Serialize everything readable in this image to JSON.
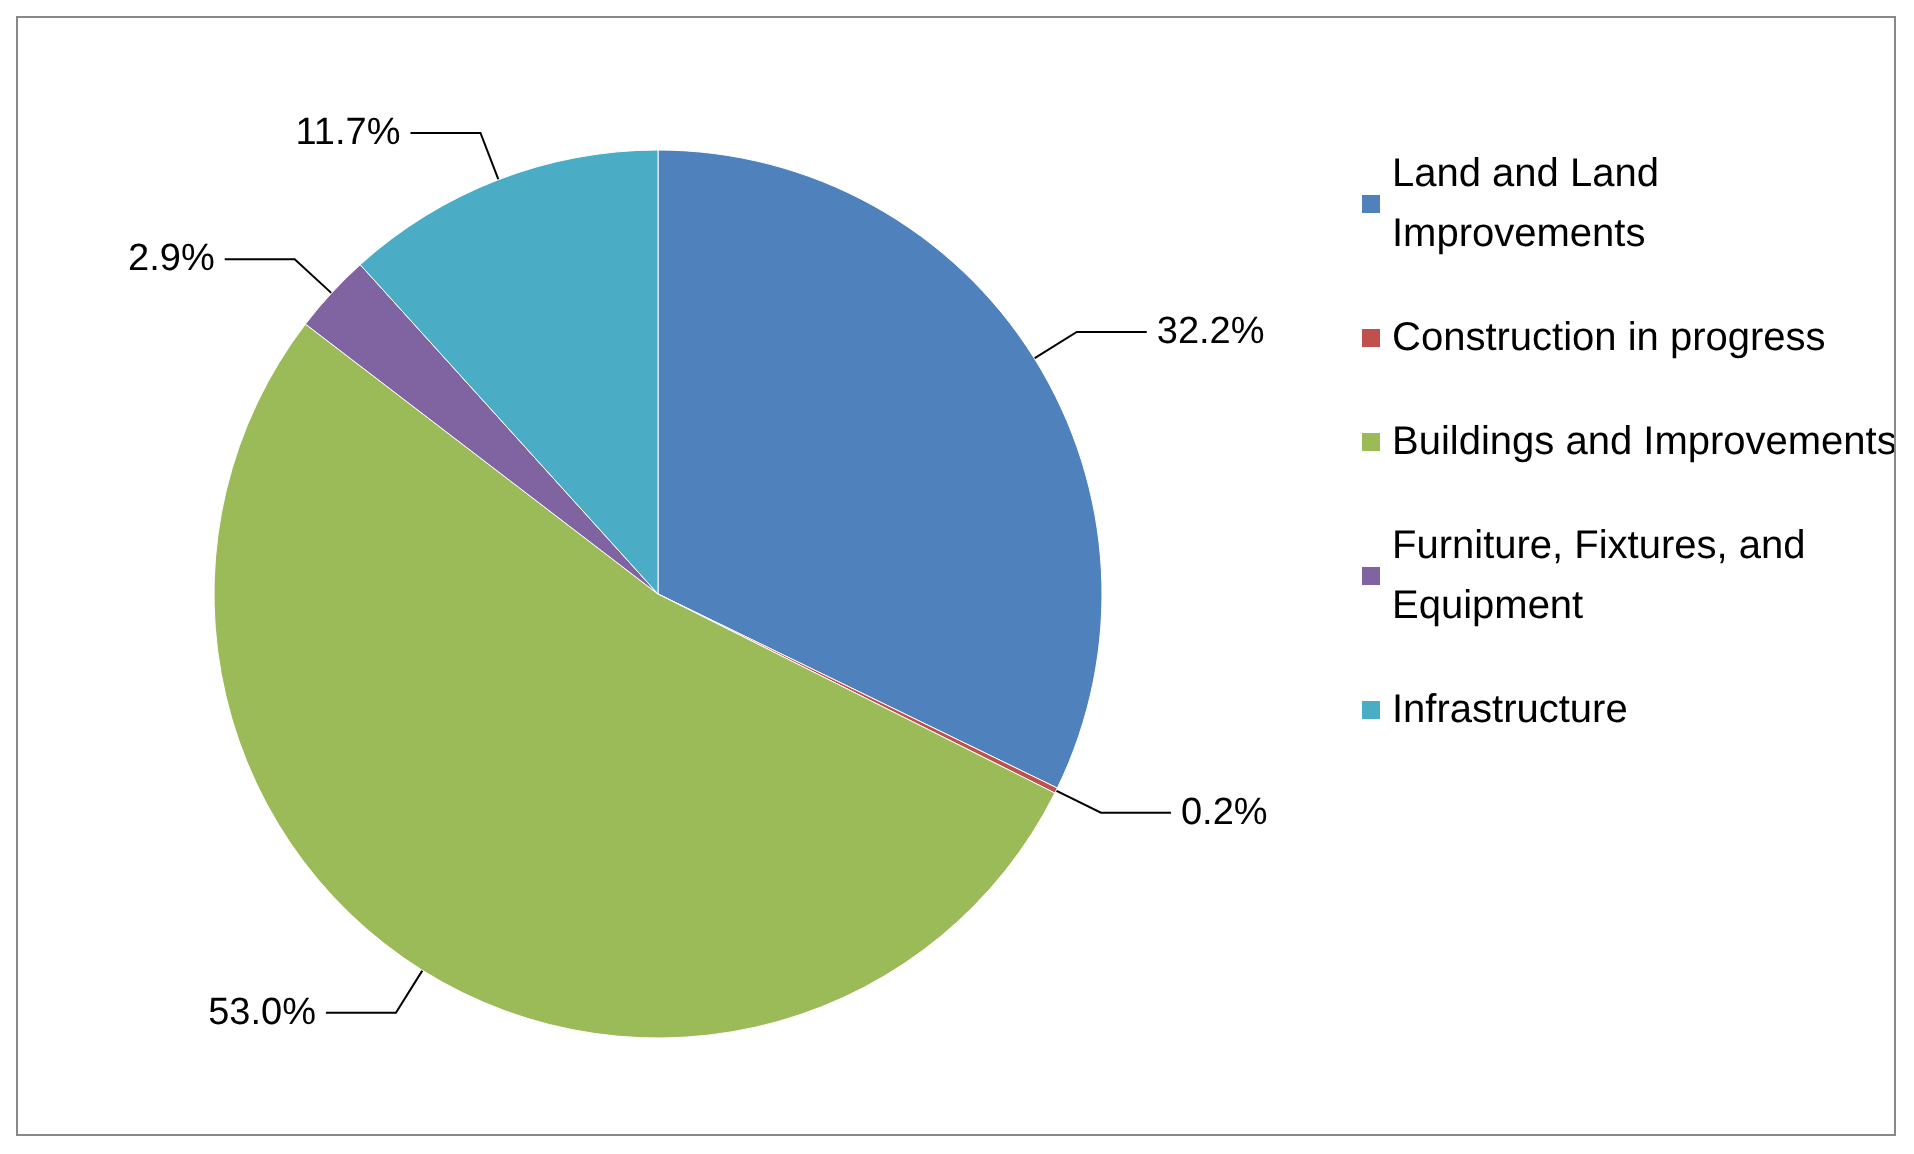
{
  "chart_data": {
    "type": "pie",
    "categories": [
      "Land and Land Improvements",
      "Construction in progress",
      "Buildings and Improvements",
      "Furniture, Fixtures, and Equipment",
      "Infrastructure"
    ],
    "values": [
      32.2,
      0.2,
      53.0,
      2.9,
      11.7
    ],
    "value_labels": [
      "32.2%",
      "0.2%",
      "53.0%",
      "2.9%",
      "11.7%"
    ],
    "colors": [
      "#4f81bd",
      "#c0504d",
      "#9bbb59",
      "#8064a2",
      "#4bacc6"
    ],
    "legend": "right"
  }
}
